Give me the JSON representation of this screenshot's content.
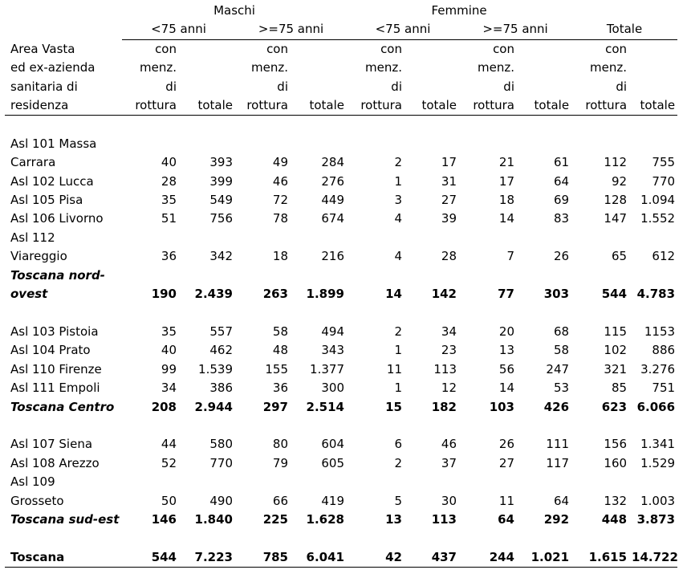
{
  "header": {
    "group_maschi": "Maschi",
    "group_femmine": "Femmine",
    "sub_lt75": "<75 anni",
    "sub_ge75": ">=75 anni",
    "sub_totale": "Totale",
    "rowlabel_lines": [
      "Area Vasta",
      "ed ex-azienda",
      "sanitaria di",
      "residenza"
    ],
    "con_lines": [
      "con",
      "menz.",
      "di",
      "rottura"
    ],
    "totale": "totale"
  },
  "groups": [
    {
      "rows": [
        {
          "label": [
            "Asl 101 Massa",
            "Carrara"
          ],
          "values": [
            "40",
            "393",
            "49",
            "284",
            "2",
            "17",
            "21",
            "61",
            "112",
            "755"
          ]
        },
        {
          "label": [
            "Asl 102 Lucca"
          ],
          "values": [
            "28",
            "399",
            "46",
            "276",
            "1",
            "31",
            "17",
            "64",
            "92",
            "770"
          ]
        },
        {
          "label": [
            "Asl 105 Pisa"
          ],
          "values": [
            "35",
            "549",
            "72",
            "449",
            "3",
            "27",
            "18",
            "69",
            "128",
            "1.094"
          ]
        },
        {
          "label": [
            "Asl 106 Livorno"
          ],
          "values": [
            "51",
            "756",
            "78",
            "674",
            "4",
            "39",
            "14",
            "83",
            "147",
            "1.552"
          ]
        },
        {
          "label": [
            "Asl 112",
            "Viareggio"
          ],
          "values": [
            "36",
            "342",
            "18",
            "216",
            "4",
            "28",
            "7",
            "26",
            "65",
            "612"
          ]
        }
      ],
      "total": {
        "label": [
          "Toscana nord-",
          "ovest"
        ],
        "values": [
          "190",
          "2.439",
          "263",
          "1.899",
          "14",
          "142",
          "77",
          "303",
          "544",
          "4.783"
        ]
      }
    },
    {
      "rows": [
        {
          "label": [
            "Asl 103 Pistoia"
          ],
          "values": [
            "35",
            "557",
            "58",
            "494",
            "2",
            "34",
            "20",
            "68",
            "115",
            "1153"
          ]
        },
        {
          "label": [
            "Asl 104 Prato"
          ],
          "values": [
            "40",
            "462",
            "48",
            "343",
            "1",
            "23",
            "13",
            "58",
            "102",
            "886"
          ]
        },
        {
          "label": [
            "Asl 110 Firenze"
          ],
          "values": [
            "99",
            "1.539",
            "155",
            "1.377",
            "11",
            "113",
            "56",
            "247",
            "321",
            "3.276"
          ]
        },
        {
          "label": [
            "Asl 111 Empoli"
          ],
          "values": [
            "34",
            "386",
            "36",
            "300",
            "1",
            "12",
            "14",
            "53",
            "85",
            "751"
          ]
        }
      ],
      "total": {
        "label": [
          "Toscana Centro"
        ],
        "values": [
          "208",
          "2.944",
          "297",
          "2.514",
          "15",
          "182",
          "103",
          "426",
          "623",
          "6.066"
        ]
      }
    },
    {
      "rows": [
        {
          "label": [
            "Asl 107 Siena"
          ],
          "values": [
            "44",
            "580",
            "80",
            "604",
            "6",
            "46",
            "26",
            "111",
            "156",
            "1.341"
          ]
        },
        {
          "label": [
            "Asl 108 Arezzo"
          ],
          "values": [
            "52",
            "770",
            "79",
            "605",
            "2",
            "37",
            "27",
            "117",
            "160",
            "1.529"
          ]
        },
        {
          "label": [
            "Asl 109",
            "Grosseto"
          ],
          "values": [
            "50",
            "490",
            "66",
            "419",
            "5",
            "30",
            "11",
            "64",
            "132",
            "1.003"
          ]
        }
      ],
      "total": {
        "label": [
          "Toscana sud-est"
        ],
        "values": [
          "146",
          "1.840",
          "225",
          "1.628",
          "13",
          "113",
          "64",
          "292",
          "448",
          "3.873"
        ]
      }
    }
  ],
  "grand_total": {
    "label": "Toscana",
    "values": [
      "544",
      "7.223",
      "785",
      "6.041",
      "42",
      "437",
      "244",
      "1.021",
      "1.615",
      "14.722"
    ]
  }
}
